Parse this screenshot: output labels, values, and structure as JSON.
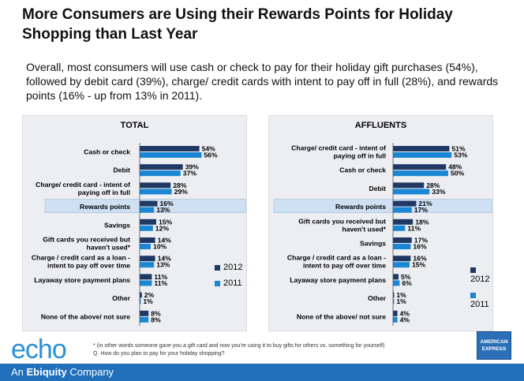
{
  "title": "More Consumers are Using their Rewards Points for Holiday Shopping than Last Year",
  "summary": "Overall, most consumers will use cash or check to pay for their holiday gift purchases (54%), followed by debit card (39%), charge/ credit cards with intent to pay off in full (28%), and rewards points (16% - up from 13% in 2011).",
  "colors": {
    "s2012": "#1f3864",
    "s2011": "#1a86d4",
    "highlight": "#cfe0f3"
  },
  "legend": {
    "s2012": "2012",
    "s2011": "2011"
  },
  "chart_data": [
    {
      "type": "bar",
      "orientation": "horizontal",
      "title": "TOTAL",
      "categories": [
        "Cash or check",
        "Debit",
        "Charge/ credit card - intent of paying off in full",
        "Rewards points",
        "Savings",
        "Gift cards you received but haven't used*",
        "Charge / credit card as a loan - intent to pay off over time",
        "Layaway store payment plans",
        "Other",
        "None of the above/ not sure"
      ],
      "category_lines": [
        [
          "Cash or check"
        ],
        [
          "Debit"
        ],
        [
          "Charge/ credit card - intent of",
          "paying  off in full"
        ],
        [
          "Rewards points"
        ],
        [
          "Savings"
        ],
        [
          "Gift cards you received but",
          "haven't used*"
        ],
        [
          "Charge / credit card as a loan -",
          "intent to pay off over time"
        ],
        [
          "Layaway store payment plans"
        ],
        [
          "Other"
        ],
        [
          "None of the above/ not sure"
        ]
      ],
      "highlight": "Rewards points",
      "series": [
        {
          "name": "2012",
          "values": [
            54,
            39,
            28,
            16,
            15,
            14,
            14,
            11,
            2,
            8
          ]
        },
        {
          "name": "2011",
          "values": [
            56,
            37,
            29,
            13,
            12,
            10,
            13,
            11,
            1,
            8
          ]
        }
      ],
      "value_suffix": "%",
      "xlim": [
        0,
        100
      ]
    },
    {
      "type": "bar",
      "orientation": "horizontal",
      "title": "AFFLUENTS",
      "categories": [
        "Charge/ credit card - intent of paying off in full",
        "Cash or check",
        "Debit",
        "Rewards points",
        "Gift cards you received but haven't used*",
        "Savings",
        "Charge / credit card as a loan - intent to pay off over time",
        "Layaway store payment plans",
        "Other",
        "None of the above/ not sure"
      ],
      "category_lines": [
        [
          "Charge/ credit card - intent of",
          "paying  off in full"
        ],
        [
          "Cash or check"
        ],
        [
          "Debit"
        ],
        [
          "Rewards points"
        ],
        [
          "Gift cards you received but",
          "haven't used*"
        ],
        [
          "Savings"
        ],
        [
          "Charge / credit card as a loan -",
          "intent to pay off over time"
        ],
        [
          "Layaway store payment plans"
        ],
        [
          "Other"
        ],
        [
          "None of the above/ not sure"
        ]
      ],
      "highlight": "Rewards points",
      "series": [
        {
          "name": "2012",
          "values": [
            51,
            48,
            28,
            21,
            18,
            17,
            16,
            5,
            1,
            4
          ]
        },
        {
          "name": "2011",
          "values": [
            53,
            50,
            33,
            17,
            11,
            16,
            15,
            6,
            1,
            4
          ]
        }
      ],
      "value_suffix": "%",
      "xlim": [
        0,
        100
      ]
    }
  ],
  "footnote": {
    "line1": "* (in other words someone gave you a gift card and now you're using it to buy gifts for others vs. something for yourself)",
    "line2": "Q.   How do you plan to pay for your holiday shopping?"
  },
  "branding": {
    "logo": "echo",
    "company_prefix": "An ",
    "company_name": "Ebiquity",
    "company_suffix": " Company",
    "amex_line1": "AMERICAN",
    "amex_line2": "EXPRESS"
  }
}
